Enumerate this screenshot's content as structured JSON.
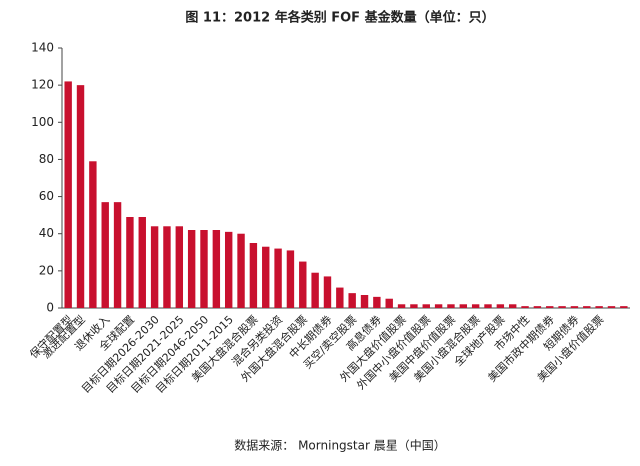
{
  "chart_data": {
    "type": "bar",
    "title": "图 11：2012 年各类别 FOF 基金数量（单位：只）",
    "source": "数据来源： Morningstar 晨星（中国）",
    "categories": [
      "保守配置型",
      "激进配置型",
      null,
      "退休收入",
      null,
      "全球配置",
      null,
      "目标日期2026-2030",
      null,
      "目标日期2021-2025",
      null,
      "目标日期2046-2050",
      null,
      "目标日期2011-2015",
      null,
      "美国大盘混合股票",
      null,
      "混合另类投资",
      null,
      "外国大盘混合股票",
      null,
      "中长期债券",
      null,
      "买空/卖空股票",
      null,
      "高息债券",
      null,
      "外国大盘价值股票",
      null,
      "外国中小盘价值股票",
      null,
      "美国中盘价值股票",
      null,
      "美国小盘混合股票",
      null,
      "全球地产股票",
      null,
      "市场中性",
      null,
      "美国市政中期债券",
      null,
      "短期债券",
      null,
      "美国小盘价值股票",
      null,
      null
    ],
    "values": [
      122,
      120,
      79,
      57,
      57,
      49,
      49,
      44,
      44,
      44,
      42,
      42,
      42,
      41,
      40,
      35,
      33,
      32,
      31,
      25,
      19,
      17,
      11,
      8,
      7,
      6,
      5,
      2,
      2,
      2,
      2,
      2,
      2,
      2,
      2,
      2,
      2,
      1,
      1,
      1,
      1,
      1,
      1,
      1,
      1,
      1
    ],
    "color": "#c8102e",
    "ylim": [
      0,
      140
    ],
    "yticks": [
      0,
      20,
      40,
      60,
      80,
      100,
      120,
      140
    ],
    "grid": false
  }
}
